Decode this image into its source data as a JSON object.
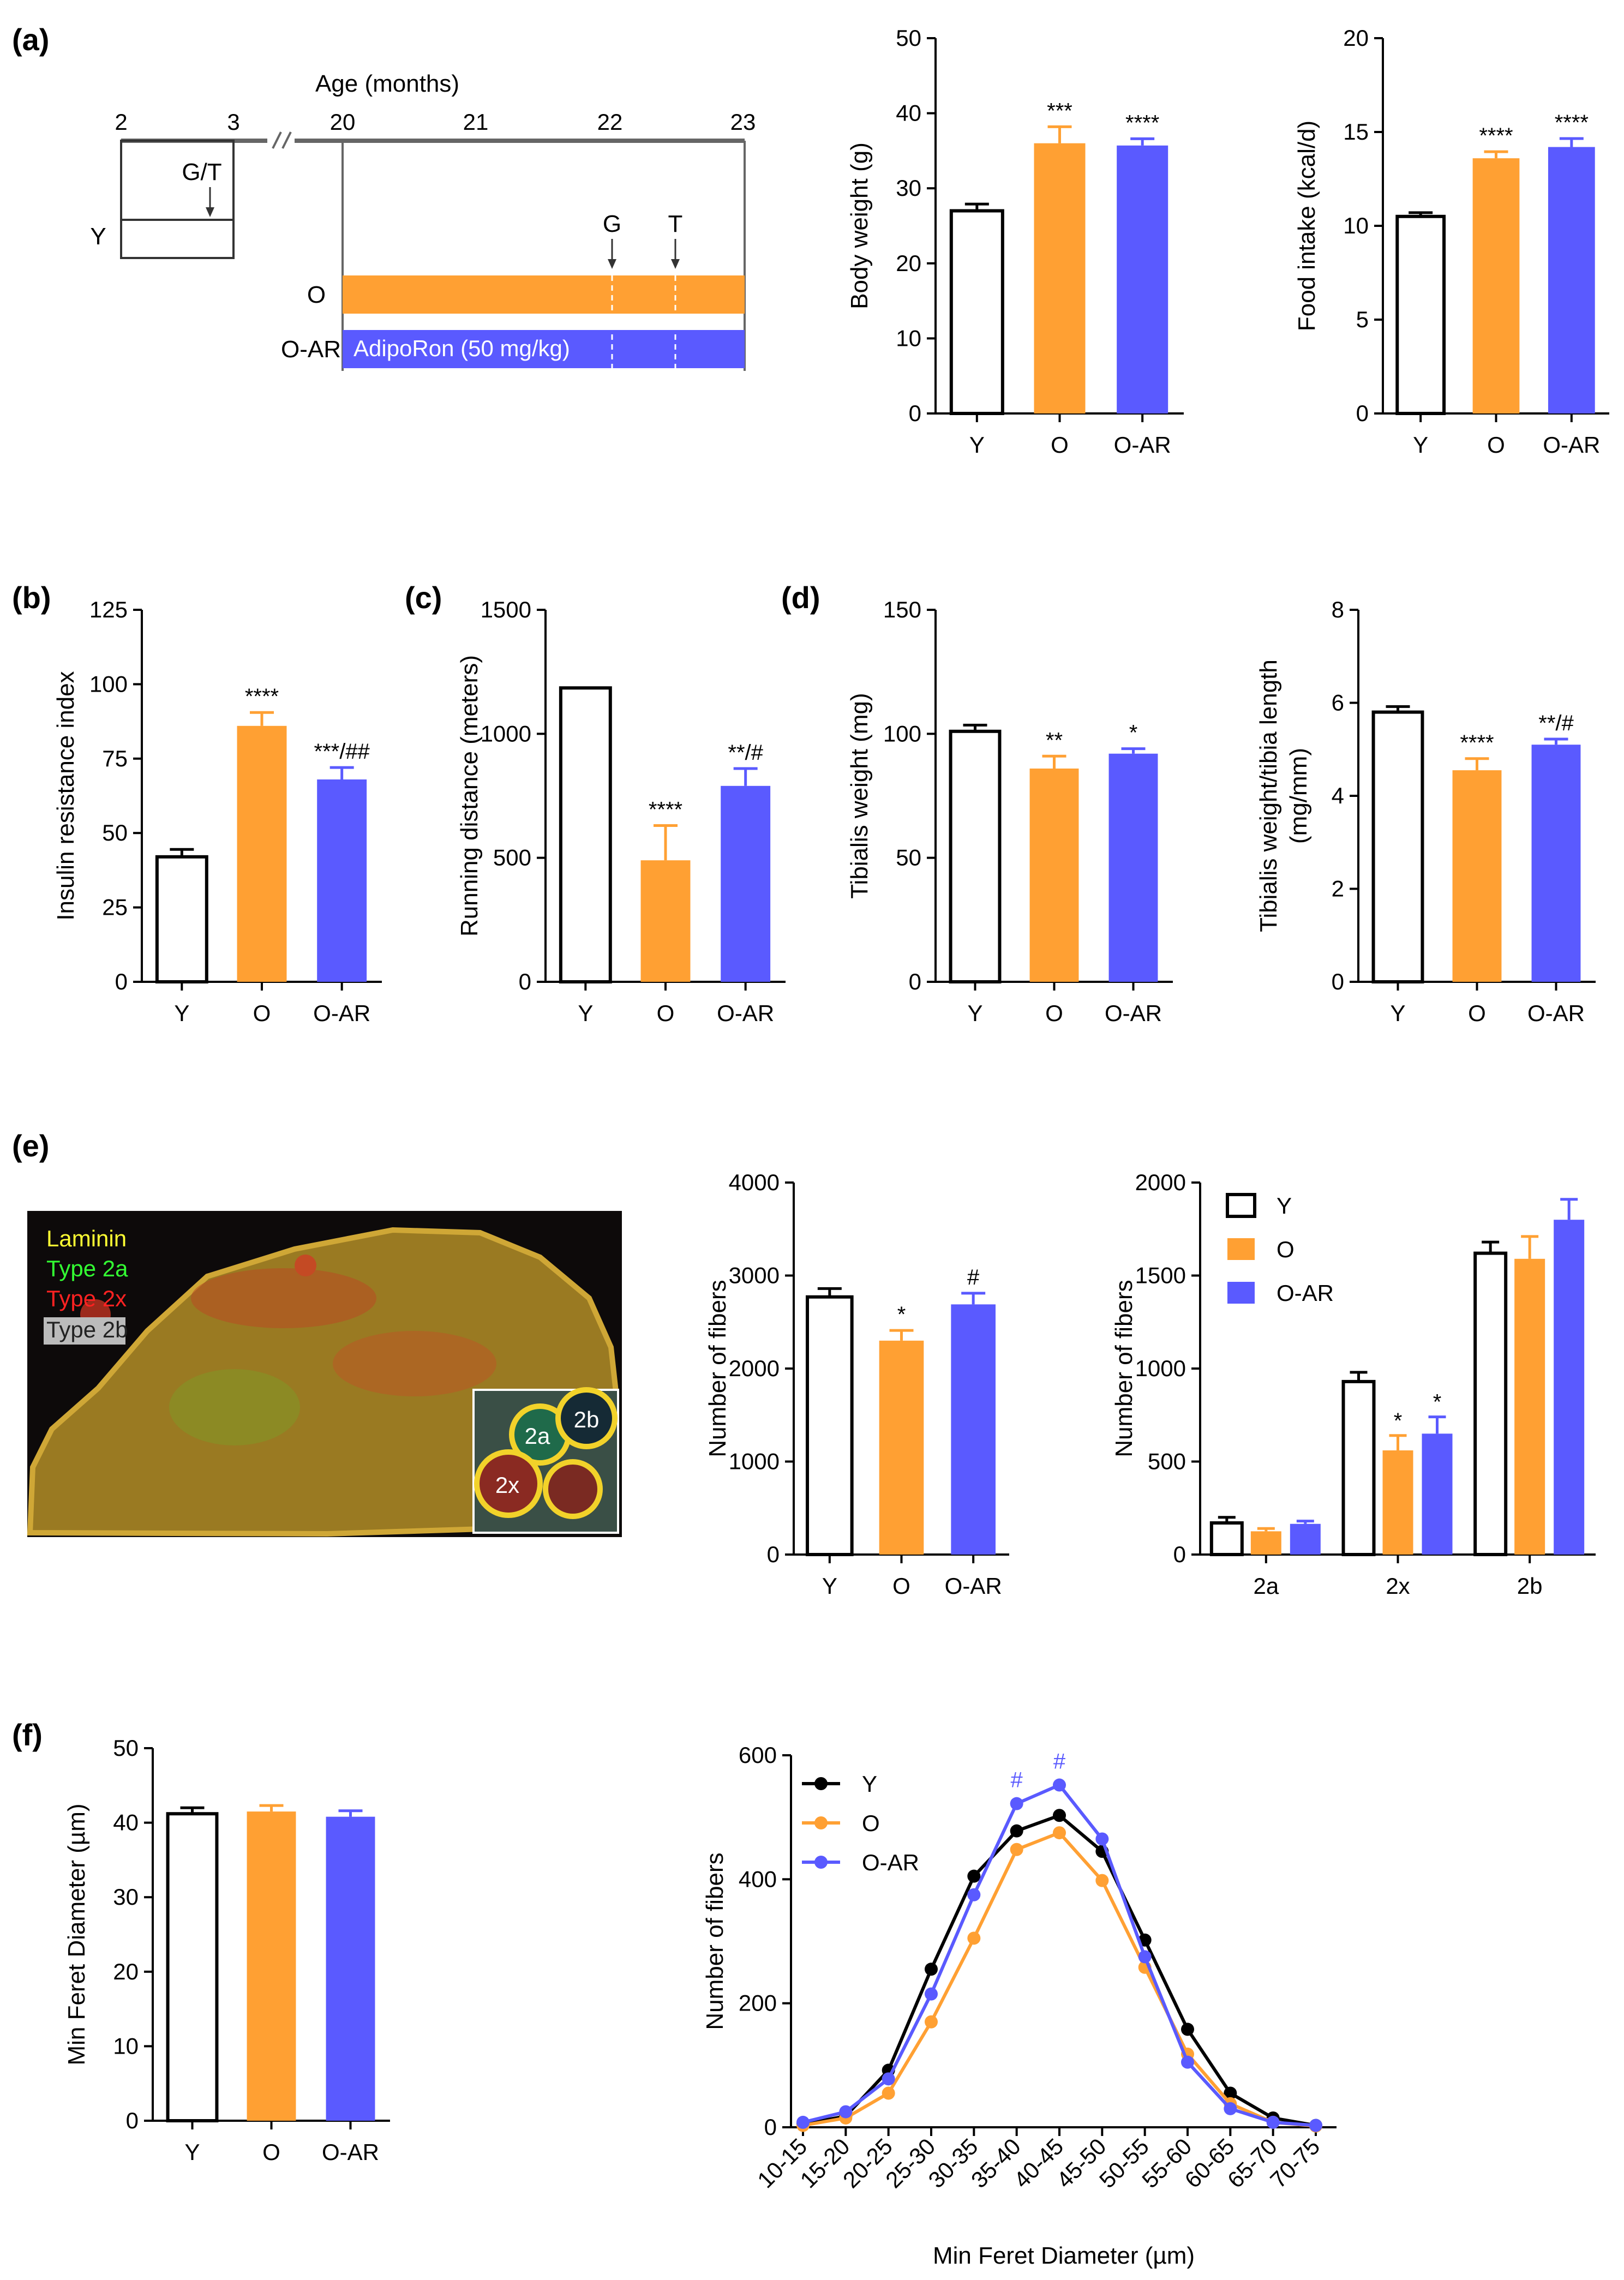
{
  "colors": {
    "Y": "#ffffff",
    "O": "#ffa033",
    "O-AR": "#5a5aff",
    "outline": "#000000",
    "hashBlue": "#5a5aff"
  },
  "panels": {
    "a": "(a)",
    "b": "(b)",
    "c": "(c)",
    "d": "(d)",
    "e": "(e)",
    "f": "(f)"
  },
  "timeline": {
    "title": "Age (months)",
    "ticks": [
      "2",
      "3",
      "20",
      "21",
      "22",
      "23"
    ],
    "young_marker": "G/T",
    "young_label": "Y",
    "old_label": "O",
    "oar_label": "O-AR",
    "drug_label": "AdipoRon (50 mg/kg)",
    "g_marker": "G",
    "t_marker": "T"
  },
  "micrograph": {
    "legend": [
      "Laminin",
      "Type 2a",
      "Type 2x",
      "Type 2b"
    ],
    "inset_labels": [
      "2a",
      "2b",
      "2x"
    ]
  },
  "chart_data": [
    {
      "id": "body_weight",
      "type": "bar",
      "categories": [
        "Y",
        "O",
        "O-AR"
      ],
      "values": [
        27,
        36,
        35.7
      ],
      "errors": [
        0.9,
        2.2,
        0.9
      ],
      "ylabel": "Body weight (g)",
      "ylim": [
        0,
        50
      ],
      "yticks": [
        "0",
        "10",
        "20",
        "30",
        "40",
        "50"
      ],
      "annotations": [
        "",
        "***",
        "****"
      ]
    },
    {
      "id": "food_intake",
      "type": "bar",
      "categories": [
        "Y",
        "O",
        "O-AR"
      ],
      "values": [
        10.5,
        13.6,
        14.2
      ],
      "errors": [
        0.2,
        0.35,
        0.45
      ],
      "ylabel": "Food intake (kcal/d)",
      "ylim": [
        0,
        20
      ],
      "yticks": [
        "0",
        "5",
        "10",
        "15",
        "20"
      ],
      "annotations": [
        "",
        "****",
        "****"
      ]
    },
    {
      "id": "insulin_resistance",
      "type": "bar",
      "categories": [
        "Y",
        "O",
        "O-AR"
      ],
      "values": [
        42,
        86,
        68
      ],
      "errors": [
        2.5,
        4.5,
        4
      ],
      "ylabel": "Insulin resistance index",
      "ylim": [
        0,
        125
      ],
      "yticks": [
        "0",
        "25",
        "50",
        "75",
        "100",
        "125"
      ],
      "annotations": [
        "",
        "****",
        "***/##"
      ]
    },
    {
      "id": "running_distance",
      "type": "bar",
      "categories": [
        "Y",
        "O",
        "O-AR"
      ],
      "values": [
        1185,
        490,
        790
      ],
      "errors": [
        0,
        140,
        70
      ],
      "ylabel": "Running distance (meters)",
      "ylim": [
        0,
        1500
      ],
      "yticks": [
        "0",
        "500",
        "1000",
        "1500"
      ],
      "annotations": [
        "",
        "****",
        "**/#"
      ]
    },
    {
      "id": "tibialis_weight",
      "type": "bar",
      "categories": [
        "Y",
        "O",
        "O-AR"
      ],
      "values": [
        101,
        86,
        92
      ],
      "errors": [
        2.5,
        5,
        2
      ],
      "ylabel": "Tibialis weight (mg)",
      "ylim": [
        0,
        150
      ],
      "yticks": [
        "0",
        "50",
        "100",
        "150"
      ],
      "annotations": [
        "",
        "**",
        "*"
      ]
    },
    {
      "id": "tibialis_ratio",
      "type": "bar",
      "categories": [
        "Y",
        "O",
        "O-AR"
      ],
      "values": [
        5.8,
        4.55,
        5.1
      ],
      "errors": [
        0.12,
        0.25,
        0.12
      ],
      "ylabel": "Tibialis weight/tibia length",
      "ylabel2": "(mg/mm)",
      "ylim": [
        0,
        8
      ],
      "yticks": [
        "0",
        "2",
        "4",
        "6",
        "8"
      ],
      "annotations": [
        "",
        "****",
        "**/#"
      ]
    },
    {
      "id": "fiber_count",
      "type": "bar",
      "categories": [
        "Y",
        "O",
        "O-AR"
      ],
      "values": [
        2770,
        2300,
        2690
      ],
      "errors": [
        90,
        110,
        120
      ],
      "ylabel": "Number of fibers",
      "ylim": [
        0,
        4000
      ],
      "yticks": [
        "0",
        "1000",
        "2000",
        "3000",
        "4000"
      ],
      "annotations": [
        "",
        "*",
        "#"
      ]
    },
    {
      "id": "fiber_types",
      "type": "bar",
      "categories": [
        "2a",
        "2x",
        "2b"
      ],
      "series": [
        {
          "name": "Y",
          "values": [
            170,
            930,
            1620
          ],
          "errors": [
            30,
            50,
            60
          ]
        },
        {
          "name": "O",
          "values": [
            125,
            560,
            1590
          ],
          "errors": [
            15,
            80,
            120
          ]
        },
        {
          "name": "O-AR",
          "values": [
            165,
            650,
            1800
          ],
          "errors": [
            15,
            90,
            110
          ]
        }
      ],
      "ylabel": "Number of fibers",
      "ylim": [
        0,
        2000
      ],
      "yticks": [
        "0",
        "500",
        "1000",
        "1500",
        "2000"
      ],
      "annotations": [
        "",
        "*",
        "*"
      ],
      "legend": [
        "Y",
        "O",
        "O-AR"
      ]
    },
    {
      "id": "min_feret",
      "type": "bar",
      "categories": [
        "Y",
        "O",
        "O-AR"
      ],
      "values": [
        41.2,
        41.5,
        40.8
      ],
      "errors": [
        0.8,
        0.8,
        0.8
      ],
      "ylabel": "Min Feret Diameter (µm)",
      "ylim": [
        0,
        50
      ],
      "yticks": [
        "0",
        "10",
        "20",
        "30",
        "40",
        "50"
      ],
      "annotations": [
        "",
        "",
        ""
      ]
    },
    {
      "id": "feret_distribution",
      "type": "line",
      "x": [
        "10-15",
        "15-20",
        "20-25",
        "25-30",
        "30-35",
        "35-40",
        "40-45",
        "45-50",
        "50-55",
        "55-60",
        "60-65",
        "65-70",
        "70-75"
      ],
      "series": [
        {
          "name": "Y",
          "values": [
            5,
            18,
            92,
            255,
            405,
            478,
            503,
            445,
            302,
            158,
            55,
            15,
            3
          ]
        },
        {
          "name": "O",
          "values": [
            3,
            15,
            55,
            170,
            305,
            448,
            475,
            398,
            258,
            118,
            38,
            8,
            2
          ]
        },
        {
          "name": "O-AR",
          "values": [
            8,
            25,
            78,
            215,
            375,
            522,
            552,
            465,
            275,
            105,
            30,
            8,
            3
          ]
        }
      ],
      "xlabel": "Min Feret Diameter (µm)",
      "ylabel": "Number of fibers",
      "ylim": [
        0,
        600
      ],
      "yticks": [
        "0",
        "200",
        "400",
        "600"
      ],
      "annotations": [
        "#",
        "#"
      ],
      "legend": [
        "Y",
        "O",
        "O-AR"
      ]
    }
  ]
}
